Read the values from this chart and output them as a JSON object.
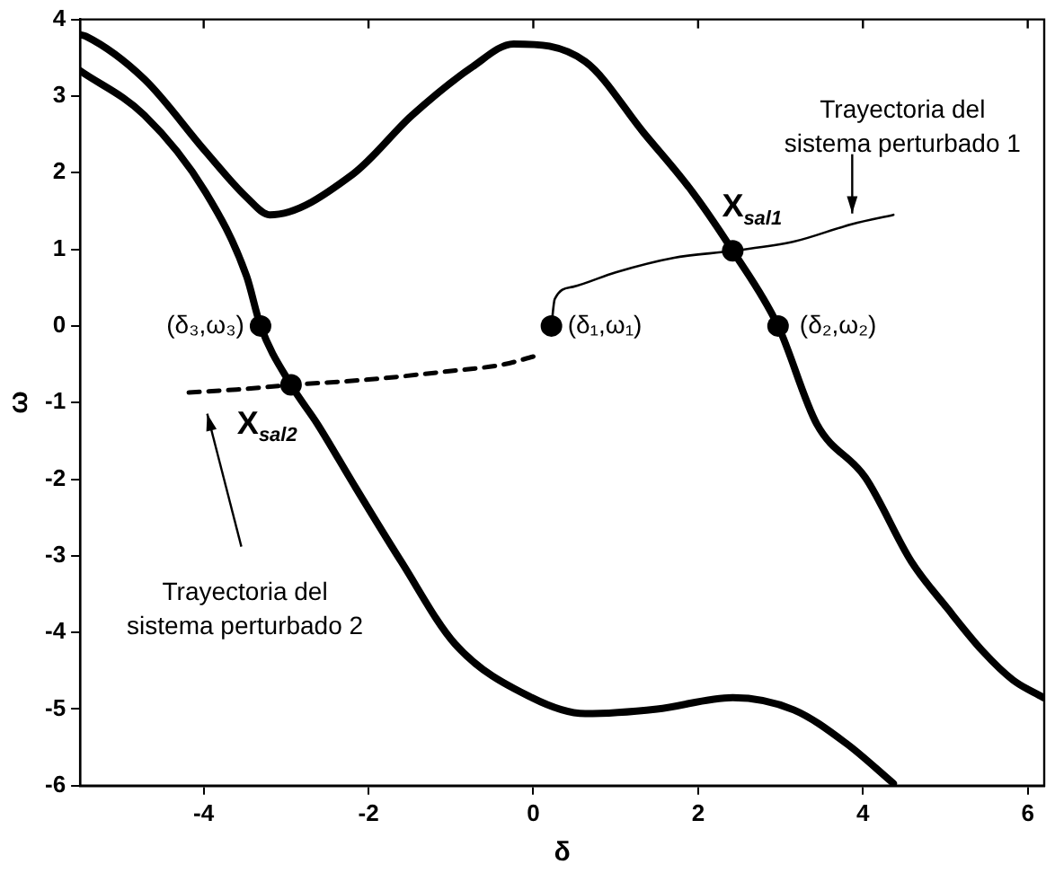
{
  "chart_data": {
    "type": "line",
    "xlabel": "δ",
    "ylabel": "ω",
    "xlim": [
      -5.5,
      6.2
    ],
    "ylim": [
      -6,
      4
    ],
    "xticks": [
      -4,
      -2,
      0,
      2,
      4,
      6
    ],
    "yticks": [
      -6,
      -5,
      -4,
      -3,
      -2,
      -1,
      0,
      1,
      2,
      3,
      4
    ],
    "grid": false,
    "legend": false,
    "marker": "none",
    "line_style": "solid",
    "series": [
      {
        "color": "#000000",
        "x": [
          -5.5,
          -5.43,
          -4.72,
          -3.98,
          -3.48,
          -3.2,
          -2.19,
          -1.47,
          -0.74,
          -0.24,
          0.63,
          1.34,
          1.93,
          2.42,
          2.97,
          3.44,
          4.03,
          4.59,
          5.02,
          5.45,
          5.82,
          6.19
        ],
        "values": [
          3.8,
          3.78,
          3.22,
          2.28,
          1.68,
          1.45,
          1.98,
          2.75,
          3.38,
          3.68,
          3.45,
          2.52,
          1.75,
          0.98,
          0,
          -1.28,
          -1.98,
          -3.08,
          -3.68,
          -4.24,
          -4.62,
          -4.85
        ]
      },
      {
        "color": "#000000",
        "x": [
          -5.5,
          -4.72,
          -3.98,
          -3.48,
          -3.31,
          -2.94,
          -2.62,
          -2.19,
          -1.6,
          -0.95,
          -0.02,
          0.63,
          1.5,
          2.42,
          3.16,
          3.8,
          4.37
        ],
        "values": [
          3.33,
          2.75,
          1.75,
          0.65,
          0,
          -0.77,
          -1.28,
          -2.05,
          -3.08,
          -4.15,
          -4.85,
          -5.06,
          -5.0,
          -4.85,
          -5.01,
          -5.45,
          -5.97
        ]
      },
      {
        "color": "#000000",
        "x": [
          0.22,
          0.26,
          0.48,
          1.0,
          1.71,
          2.42,
          3.16,
          3.87,
          4.37
        ],
        "values": [
          0,
          0.35,
          0.51,
          0.7,
          0.89,
          0.98,
          1.1,
          1.33,
          1.45
        ]
      },
      {
        "color": "#000000",
        "line_style": "dashed",
        "x": [
          0.0,
          -0.35,
          -1.1,
          -2.0,
          -2.94,
          -3.6,
          -4.2
        ],
        "values": [
          -0.4,
          -0.5,
          -0.6,
          -0.7,
          -0.77,
          -0.83,
          -0.87
        ]
      },
      {
        "type": "scatter",
        "marker": "circle",
        "color": "#000000",
        "x": [
          0.22,
          2.97,
          -3.31,
          2.42,
          -2.94
        ],
        "values": [
          0,
          0,
          0,
          0.98,
          -0.77
        ]
      }
    ],
    "annotations": [
      {
        "text": "(δ₁,ω₁)",
        "x": 0.22,
        "y": 0
      },
      {
        "text": "(δ₂,ω₂)",
        "x": 2.97,
        "y": 0
      },
      {
        "text": "(δ₃,ω₃)",
        "x": -3.31,
        "y": 0
      },
      {
        "text": "X$_{sal1}$",
        "x": 2.42,
        "y": 0.98
      },
      {
        "text": "X$_{sal2}$",
        "x": -2.94,
        "y": -0.77
      },
      {
        "text": "Trayectoria del\nsistema perturbado 1",
        "x": 3.87,
        "y": 1.35
      },
      "Trayectoria del\nsistema perturbado 2"
    ]
  }
}
